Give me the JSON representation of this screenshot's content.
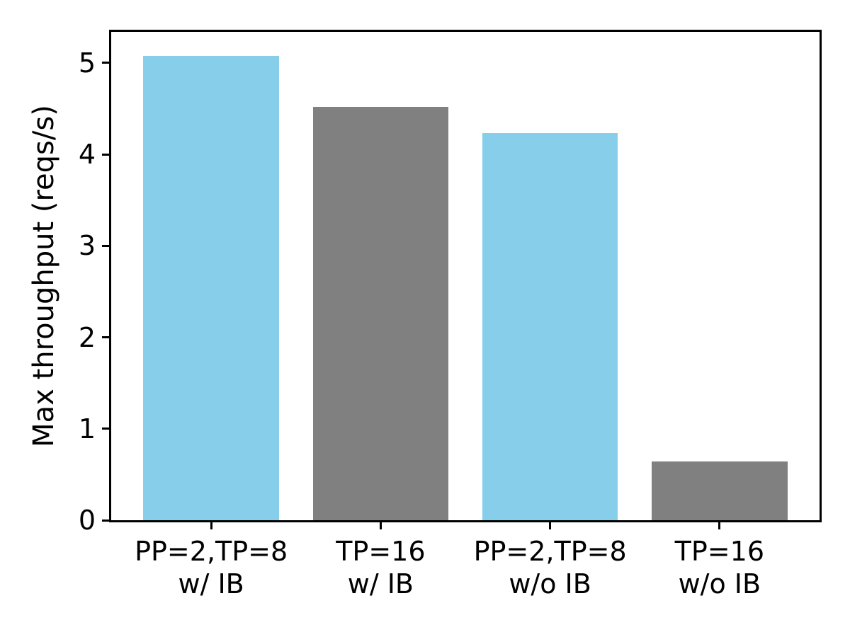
{
  "chart_data": {
    "type": "bar",
    "title": "",
    "xlabel": "",
    "ylabel": "Max throughput (reqs/s)",
    "categories": [
      "PP=2,TP=8\nw/ IB",
      "TP=16\nw/ IB",
      "PP=2,TP=8\nw/o IB",
      "TP=16\nw/o IB"
    ],
    "category_lines": [
      [
        "PP=2,TP=8",
        "w/ IB"
      ],
      [
        "TP=16",
        "w/ IB"
      ],
      [
        "PP=2,TP=8",
        "w/o IB"
      ],
      [
        "TP=16",
        "w/o IB"
      ]
    ],
    "values": [
      5.08,
      4.52,
      4.23,
      0.64
    ],
    "bar_colors": [
      "#87CEEB",
      "#808080",
      "#87CEEB",
      "#808080"
    ],
    "bar_width": 0.8,
    "yticks": [
      0,
      1,
      2,
      3,
      4,
      5
    ],
    "ylim": [
      0,
      5.34
    ],
    "xlim": [
      -0.59,
      3.59
    ],
    "grid": false,
    "legend": null,
    "axis_color": "#000000",
    "background_color": "#ffffff"
  }
}
